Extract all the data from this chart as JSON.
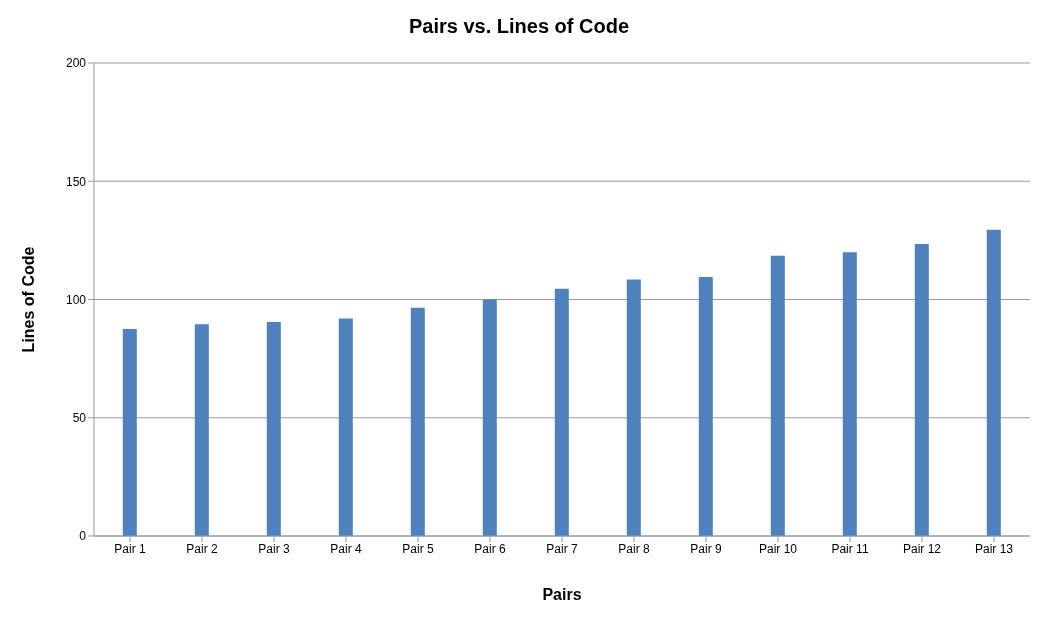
{
  "chart_data": {
    "type": "bar",
    "title": "Pairs vs. Lines of Code",
    "xlabel": "Pairs",
    "ylabel": "Lines of Code",
    "categories": [
      "Pair 1",
      "Pair 2",
      "Pair 3",
      "Pair 4",
      "Pair 5",
      "Pair 6",
      "Pair 7",
      "Pair 8",
      "Pair 9",
      "Pair 10",
      "Pair 11",
      "Pair 12",
      "Pair 13"
    ],
    "values": [
      87.5,
      89.5,
      90.5,
      92,
      96.5,
      100,
      104.5,
      108.5,
      109.5,
      118.5,
      120,
      123.5,
      129.5
    ],
    "color": "#4f81bd",
    "ylim": [
      0,
      200
    ],
    "yticks": [
      0,
      50,
      100,
      150,
      200
    ],
    "grid": "y"
  }
}
